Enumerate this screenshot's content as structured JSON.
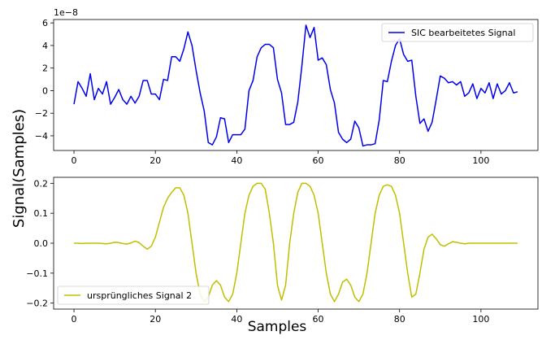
{
  "shared": {
    "ylabel": "Signal(Samples)",
    "xlabel": "Samples"
  },
  "chart_data": [
    {
      "type": "line",
      "title": "",
      "xlabel": "",
      "ylabel": "",
      "offset_text": "1e−8",
      "xlim": [
        -5,
        114
      ],
      "ylim": [
        -5.3,
        6.3
      ],
      "xticks": [
        0,
        20,
        40,
        60,
        80,
        100
      ],
      "xtick_labels": [
        "0",
        "20",
        "40",
        "60",
        "80",
        "100"
      ],
      "yticks": [
        -4,
        -2,
        0,
        2,
        4,
        6
      ],
      "ytick_labels": [
        "−4",
        "−2",
        "0",
        "2",
        "4",
        "6"
      ],
      "legend_position": "top-right",
      "series": [
        {
          "name": "SIC bearbeitetes Signal",
          "color": "#0000ee",
          "x": [
            0,
            1,
            2,
            3,
            4,
            5,
            6,
            7,
            8,
            9,
            10,
            11,
            12,
            13,
            14,
            15,
            16,
            17,
            18,
            19,
            20,
            21,
            22,
            23,
            24,
            25,
            26,
            27,
            28,
            29,
            30,
            31,
            32,
            33,
            34,
            35,
            36,
            37,
            38,
            39,
            40,
            41,
            42,
            43,
            44,
            45,
            46,
            47,
            48,
            49,
            50,
            51,
            52,
            53,
            54,
            55,
            56,
            57,
            58,
            59,
            60,
            61,
            62,
            63,
            64,
            65,
            66,
            67,
            68,
            69,
            70,
            71,
            72,
            73,
            74,
            75,
            76,
            77,
            78,
            79,
            80,
            81,
            82,
            83,
            84,
            85,
            86,
            87,
            88,
            89,
            90,
            91,
            92,
            93,
            94,
            95,
            96,
            97,
            98,
            99,
            100,
            101,
            102,
            103,
            104,
            105,
            106,
            107,
            108,
            109
          ],
          "values": [
            -1.2,
            0.8,
            0.2,
            -0.5,
            1.5,
            -0.8,
            0.2,
            -0.3,
            0.8,
            -1.2,
            -0.6,
            0.1,
            -0.8,
            -1.2,
            -0.5,
            -1.1,
            -0.5,
            0.9,
            0.9,
            -0.3,
            -0.3,
            -0.8,
            1.0,
            0.9,
            3.0,
            3.0,
            2.6,
            3.7,
            5.2,
            4.0,
            1.8,
            -0.2,
            -1.8,
            -4.6,
            -4.8,
            -4.1,
            -2.4,
            -2.5,
            -4.6,
            -3.9,
            -3.9,
            -3.9,
            -3.4,
            0.0,
            0.9,
            3.0,
            3.8,
            4.1,
            4.1,
            3.8,
            1.0,
            -0.2,
            -3.0,
            -3.0,
            -2.8,
            -1.0,
            2.2,
            5.8,
            4.7,
            5.6,
            2.7,
            2.9,
            2.3,
            0.1,
            -1.1,
            -3.7,
            -4.3,
            -4.6,
            -4.3,
            -2.7,
            -3.3,
            -4.9,
            -4.8,
            -4.8,
            -4.7,
            -2.6,
            0.9,
            0.8,
            2.6,
            4.0,
            4.6,
            3.2,
            2.6,
            2.7,
            -0.5,
            -2.9,
            -2.5,
            -3.6,
            -2.8,
            -0.8,
            1.3,
            1.1,
            0.7,
            0.8,
            0.5,
            0.8,
            -0.5,
            -0.2,
            0.6,
            -0.7,
            0.2,
            -0.2,
            0.7,
            -0.7,
            0.6,
            -0.3,
            0.0,
            0.7,
            -0.2,
            -0.1
          ]
        }
      ]
    },
    {
      "type": "line",
      "title": "",
      "xlabel": "",
      "ylabel": "",
      "xlim": [
        -5,
        114
      ],
      "ylim": [
        -0.22,
        0.22
      ],
      "xticks": [
        0,
        20,
        40,
        60,
        80,
        100
      ],
      "xtick_labels": [
        "0",
        "20",
        "40",
        "60",
        "80",
        "100"
      ],
      "yticks": [
        -0.2,
        -0.1,
        0.0,
        0.1,
        0.2
      ],
      "ytick_labels": [
        "−0.2",
        "−0.1",
        "0.0",
        "0.1",
        "0.2"
      ],
      "legend_position": "bottom-left",
      "series": [
        {
          "name": "ursprüngliches Signal 2",
          "color": "#bfbf00",
          "x": [
            0,
            1,
            2,
            3,
            4,
            5,
            6,
            7,
            8,
            9,
            10,
            11,
            12,
            13,
            14,
            15,
            16,
            17,
            18,
            19,
            20,
            21,
            22,
            23,
            24,
            25,
            26,
            27,
            28,
            29,
            30,
            31,
            32,
            33,
            34,
            35,
            36,
            37,
            38,
            39,
            40,
            41,
            42,
            43,
            44,
            45,
            46,
            47,
            48,
            49,
            50,
            51,
            52,
            53,
            54,
            55,
            56,
            57,
            58,
            59,
            60,
            61,
            62,
            63,
            64,
            65,
            66,
            67,
            68,
            69,
            70,
            71,
            72,
            73,
            74,
            75,
            76,
            77,
            78,
            79,
            80,
            81,
            82,
            83,
            84,
            85,
            86,
            87,
            88,
            89,
            90,
            91,
            92,
            93,
            94,
            95,
            96,
            97,
            98,
            99,
            100,
            101,
            102,
            103,
            104,
            105,
            106,
            107,
            108,
            109
          ],
          "values": [
            0.0,
            0.0,
            -0.001,
            0.0,
            0.0,
            0.0,
            0.0,
            -0.001,
            -0.002,
            0.0,
            0.003,
            0.002,
            -0.001,
            -0.003,
            0.001,
            0.007,
            0.002,
            -0.01,
            -0.02,
            -0.01,
            0.02,
            0.07,
            0.12,
            0.15,
            0.17,
            0.185,
            0.185,
            0.16,
            0.1,
            0.0,
            -0.1,
            -0.17,
            -0.195,
            -0.18,
            -0.14,
            -0.125,
            -0.14,
            -0.18,
            -0.195,
            -0.17,
            -0.1,
            0.0,
            0.1,
            0.16,
            0.19,
            0.2,
            0.2,
            0.18,
            0.1,
            0.0,
            -0.14,
            -0.19,
            -0.14,
            0.0,
            0.1,
            0.17,
            0.2,
            0.2,
            0.19,
            0.16,
            0.1,
            0.0,
            -0.1,
            -0.17,
            -0.195,
            -0.17,
            -0.13,
            -0.12,
            -0.14,
            -0.18,
            -0.195,
            -0.17,
            -0.1,
            0.0,
            0.1,
            0.16,
            0.19,
            0.195,
            0.19,
            0.16,
            0.1,
            0.0,
            -0.1,
            -0.18,
            -0.17,
            -0.1,
            -0.02,
            0.02,
            0.03,
            0.015,
            -0.005,
            -0.01,
            -0.002,
            0.005,
            0.003,
            0.0,
            -0.002,
            0.0,
            0.0,
            0.0,
            0.0,
            0.0,
            0.0,
            0.0,
            0.0,
            0.0,
            0.0,
            0.0,
            0.0,
            0.0
          ]
        }
      ]
    }
  ]
}
